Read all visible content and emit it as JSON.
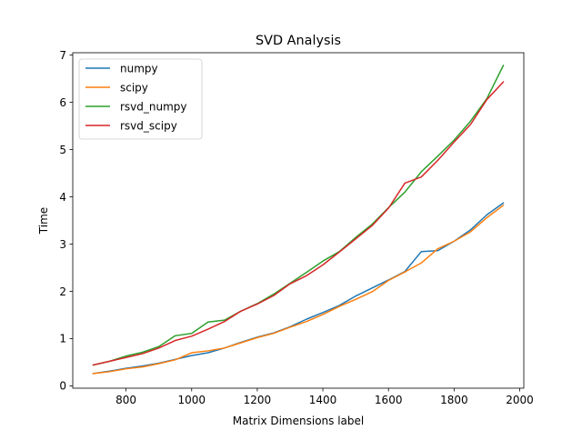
{
  "chart_data": {
    "type": "line",
    "title": "SVD Analysis",
    "xlabel": "Matrix Dimensions label",
    "ylabel": "Time",
    "xlim": [
      637.5,
      2012.5
    ],
    "ylim": [
      -0.05,
      7.05
    ],
    "xticks": [
      800,
      1000,
      1200,
      1400,
      1600,
      1800,
      2000
    ],
    "yticks": [
      0,
      1,
      2,
      3,
      4,
      5,
      6,
      7
    ],
    "grid": false,
    "legend_position": "upper-left",
    "x": [
      700,
      750,
      800,
      850,
      900,
      950,
      1000,
      1050,
      1100,
      1150,
      1200,
      1250,
      1300,
      1350,
      1400,
      1450,
      1500,
      1550,
      1600,
      1650,
      1700,
      1750,
      1800,
      1850,
      1900,
      1950
    ],
    "series": [
      {
        "name": "numpy",
        "color": "#1f77b4",
        "values": [
          0.26,
          0.31,
          0.37,
          0.42,
          0.48,
          0.56,
          0.64,
          0.7,
          0.8,
          0.92,
          1.03,
          1.12,
          1.25,
          1.41,
          1.55,
          1.7,
          1.9,
          2.07,
          2.24,
          2.42,
          2.84,
          2.86,
          3.06,
          3.3,
          3.62,
          3.87
        ]
      },
      {
        "name": "scipy",
        "color": "#ff7f0e",
        "values": [
          0.26,
          0.3,
          0.36,
          0.4,
          0.47,
          0.55,
          0.7,
          0.74,
          0.8,
          0.91,
          1.02,
          1.11,
          1.24,
          1.36,
          1.51,
          1.68,
          1.83,
          1.99,
          2.23,
          2.41,
          2.6,
          2.9,
          3.06,
          3.26,
          3.56,
          3.82
        ]
      },
      {
        "name": "rsvd_numpy",
        "color": "#2ca02c",
        "values": [
          0.44,
          0.52,
          0.63,
          0.71,
          0.83,
          1.06,
          1.11,
          1.35,
          1.39,
          1.58,
          1.74,
          1.94,
          2.17,
          2.4,
          2.64,
          2.84,
          3.14,
          3.42,
          3.77,
          4.1,
          4.53,
          4.86,
          5.2,
          5.6,
          6.08,
          6.78
        ]
      },
      {
        "name": "rsvd_scipy",
        "color": "#d62728",
        "values": [
          0.44,
          0.52,
          0.6,
          0.68,
          0.8,
          0.96,
          1.05,
          1.2,
          1.36,
          1.58,
          1.73,
          1.91,
          2.16,
          2.33,
          2.56,
          2.83,
          3.11,
          3.39,
          3.76,
          4.29,
          4.42,
          4.77,
          5.16,
          5.53,
          6.06,
          6.43
        ]
      }
    ]
  }
}
